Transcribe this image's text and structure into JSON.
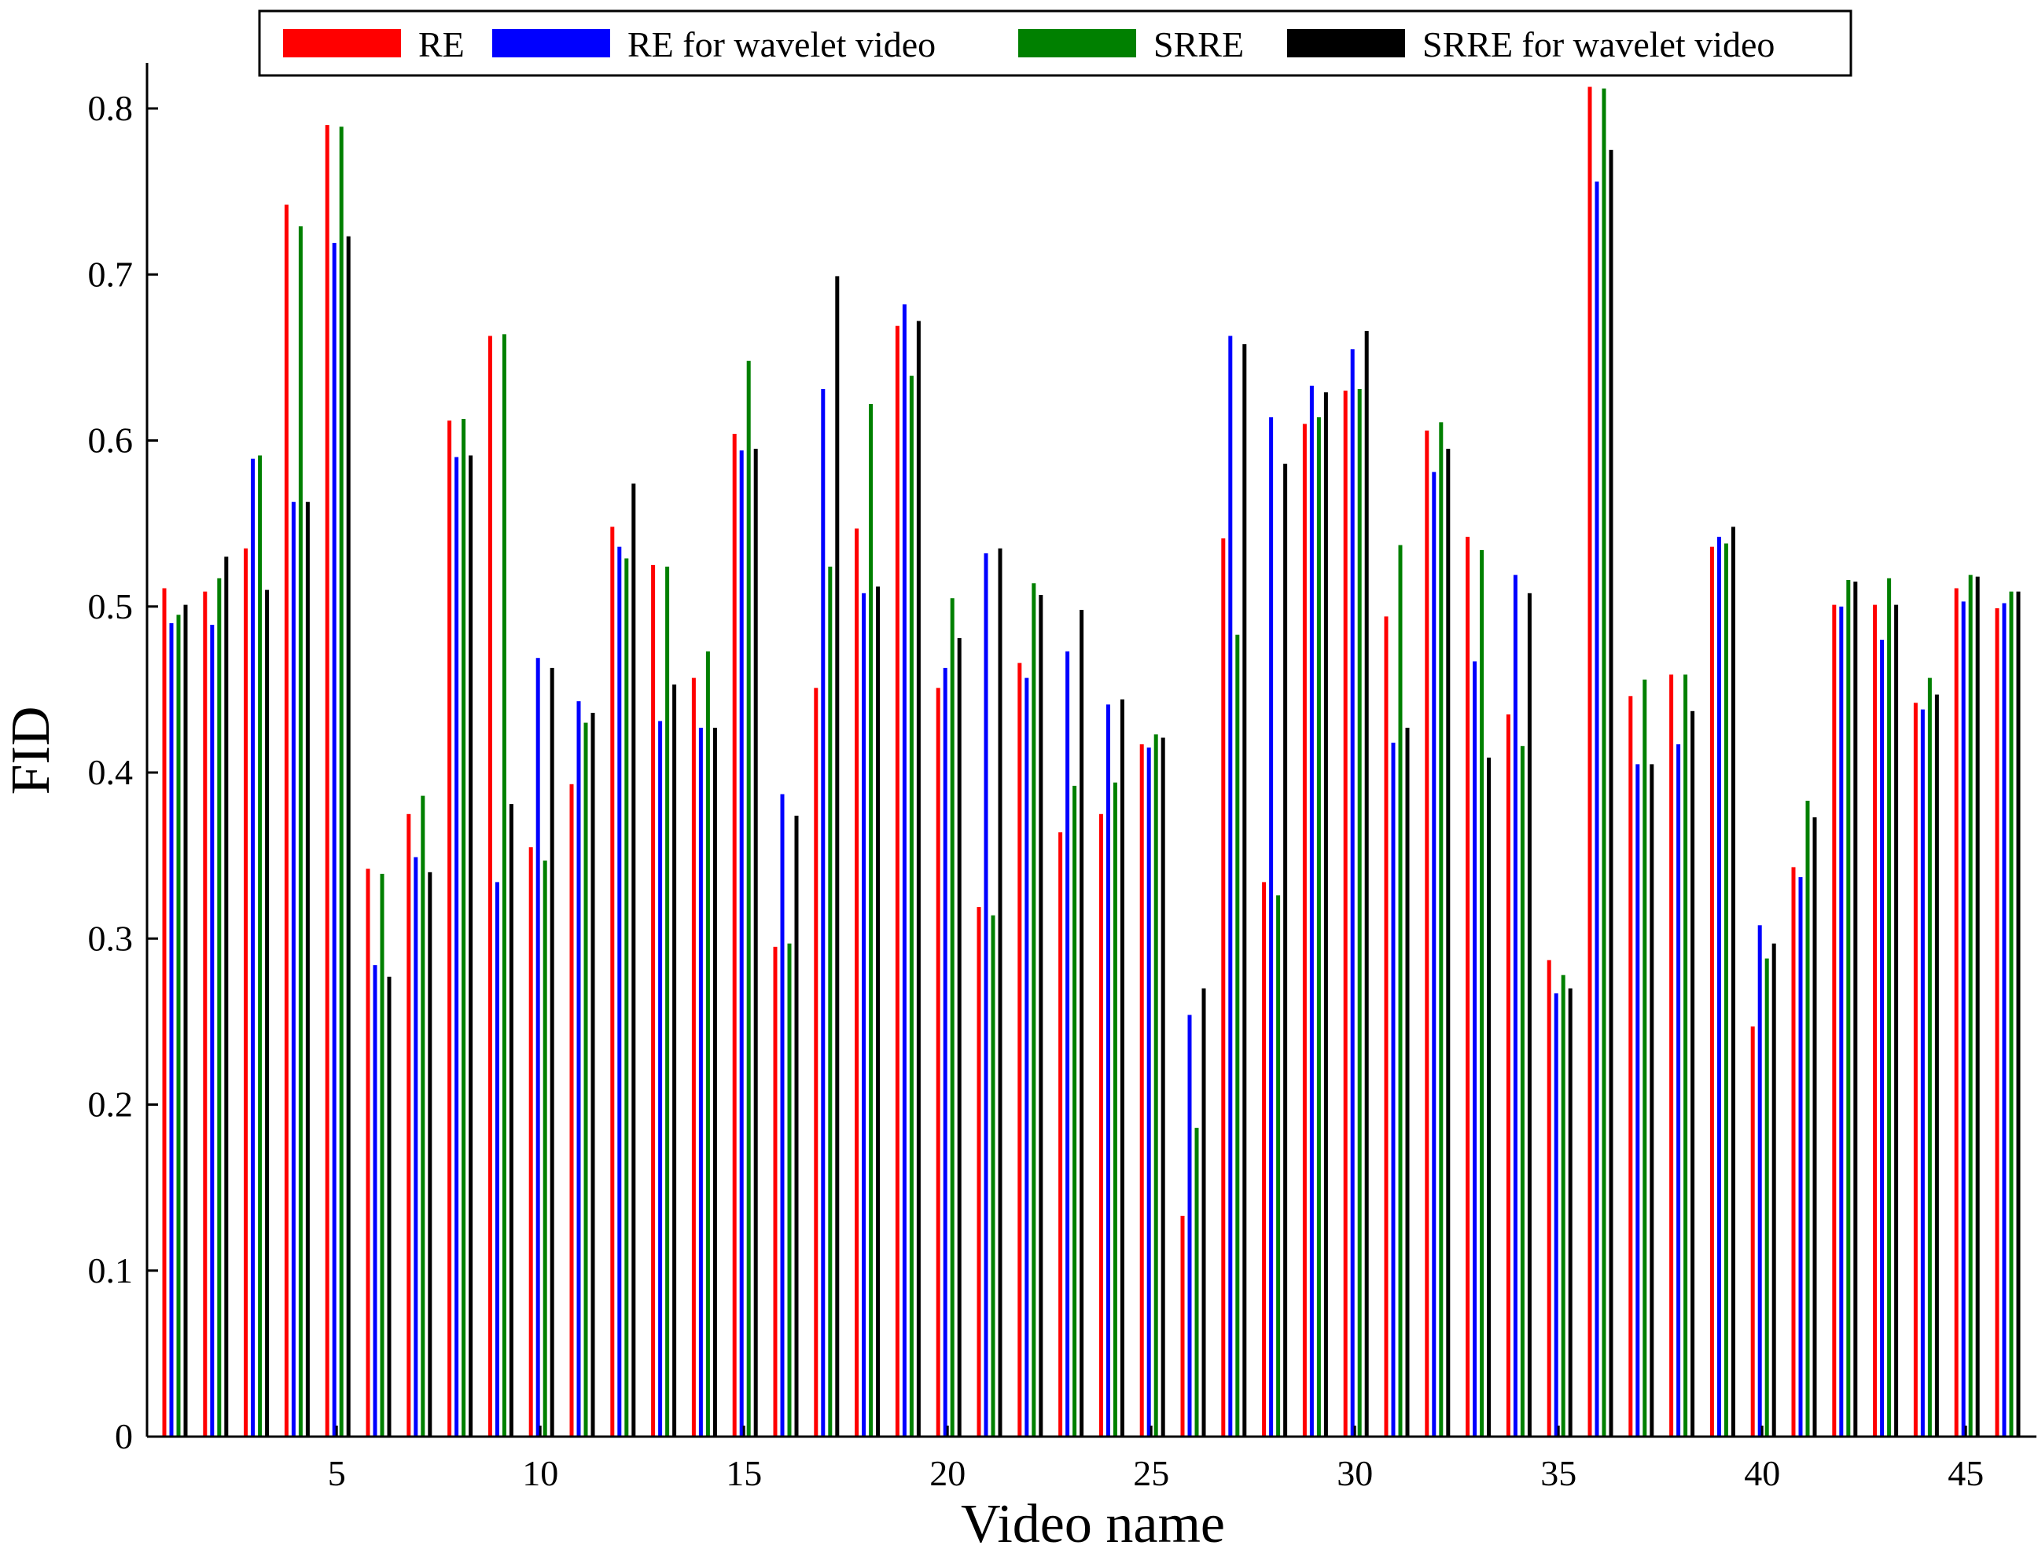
{
  "chart_data": {
    "type": "bar",
    "title": "",
    "xlabel": "Video name",
    "ylabel": "FID",
    "ylim": [
      0,
      0.8
    ],
    "yticks": [
      "0",
      "0.1",
      "0.2",
      "0.3",
      "0.4",
      "0.5",
      "0.6",
      "0.7",
      "0.8"
    ],
    "xticks": [
      "5",
      "10",
      "15",
      "20",
      "25",
      "30",
      "35",
      "40",
      "45"
    ],
    "grid": false,
    "legend_position": "top",
    "categories": [
      1,
      2,
      3,
      4,
      5,
      6,
      7,
      8,
      9,
      10,
      11,
      12,
      13,
      14,
      15,
      16,
      17,
      18,
      19,
      20,
      21,
      22,
      23,
      24,
      25,
      26,
      27,
      28,
      29,
      30,
      31,
      32,
      33,
      34,
      35,
      36,
      37,
      38,
      39,
      40,
      41,
      42,
      43,
      44,
      45,
      46
    ],
    "series": [
      {
        "name": "RE",
        "color": "#ff0000",
        "values": [
          0.511,
          0.509,
          0.535,
          0.742,
          0.79,
          0.342,
          0.375,
          0.612,
          0.663,
          0.355,
          0.393,
          0.548,
          0.525,
          0.457,
          0.604,
          0.295,
          0.451,
          0.547,
          0.669,
          0.451,
          0.319,
          0.466,
          0.364,
          0.375,
          0.417,
          0.133,
          0.541,
          0.334,
          0.61,
          0.63,
          0.494,
          0.606,
          0.542,
          0.435,
          0.287,
          0.813,
          0.446,
          0.459,
          0.536,
          0.247,
          0.343,
          0.501,
          0.501,
          0.442,
          0.511,
          0.499
        ]
      },
      {
        "name": "RE for wavelet video",
        "color": "#0000ff",
        "values": [
          0.49,
          0.489,
          0.589,
          0.563,
          0.719,
          0.284,
          0.349,
          0.59,
          0.334,
          0.469,
          0.443,
          0.536,
          0.431,
          0.427,
          0.594,
          0.387,
          0.631,
          0.508,
          0.682,
          0.463,
          0.532,
          0.457,
          0.473,
          0.441,
          0.415,
          0.254,
          0.663,
          0.614,
          0.633,
          0.655,
          0.418,
          0.581,
          0.467,
          0.519,
          0.267,
          0.756,
          0.405,
          0.417,
          0.542,
          0.308,
          0.337,
          0.5,
          0.48,
          0.438,
          0.503,
          0.502
        ]
      },
      {
        "name": "SRRE",
        "color": "#008000",
        "values": [
          0.495,
          0.517,
          0.591,
          0.729,
          0.789,
          0.339,
          0.386,
          0.613,
          0.664,
          0.347,
          0.43,
          0.529,
          0.524,
          0.473,
          0.648,
          0.297,
          0.524,
          0.622,
          0.639,
          0.505,
          0.314,
          0.514,
          0.392,
          0.394,
          0.423,
          0.186,
          0.483,
          0.326,
          0.614,
          0.631,
          0.537,
          0.611,
          0.534,
          0.416,
          0.278,
          0.812,
          0.456,
          0.459,
          0.538,
          0.288,
          0.383,
          0.516,
          0.517,
          0.457,
          0.519,
          0.509
        ]
      },
      {
        "name": "SRRE for wavelet video",
        "color": "#000000",
        "values": [
          0.501,
          0.53,
          0.51,
          0.563,
          0.723,
          0.277,
          0.34,
          0.591,
          0.381,
          0.463,
          0.436,
          0.574,
          0.453,
          0.427,
          0.595,
          0.374,
          0.699,
          0.512,
          0.672,
          0.481,
          0.535,
          0.507,
          0.498,
          0.444,
          0.421,
          0.27,
          0.658,
          0.586,
          0.629,
          0.666,
          0.427,
          0.595,
          0.409,
          0.508,
          0.27,
          0.775,
          0.405,
          0.437,
          0.548,
          0.297,
          0.373,
          0.515,
          0.501,
          0.447,
          0.518,
          0.509
        ]
      }
    ]
  }
}
